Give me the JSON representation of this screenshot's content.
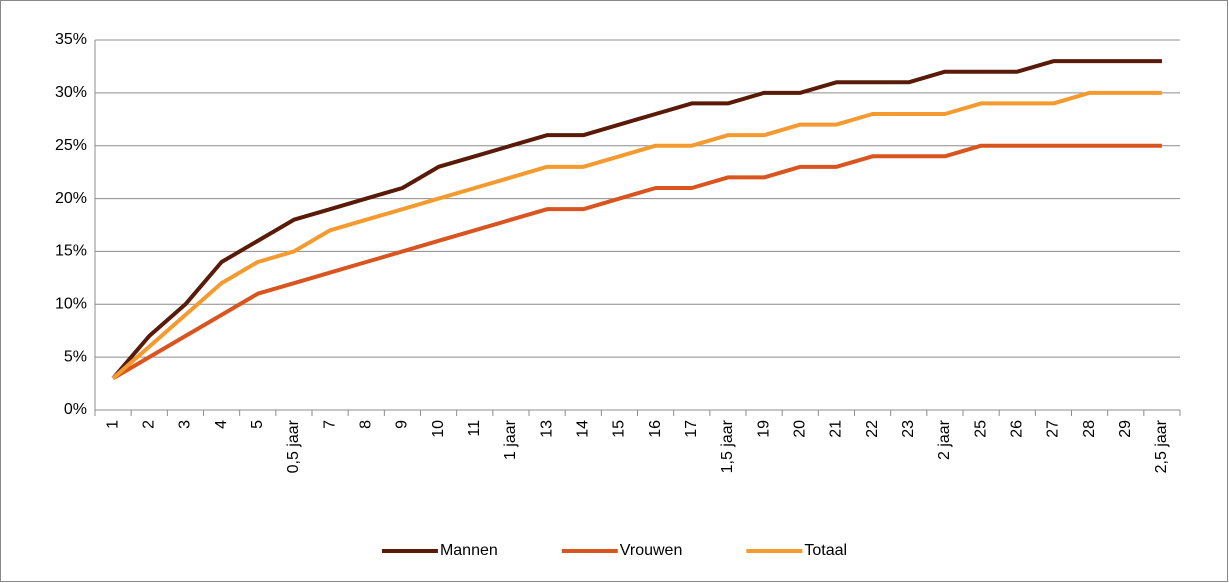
{
  "chart_data": {
    "type": "line",
    "categories": [
      "1",
      "2",
      "3",
      "4",
      "5",
      "0,5 jaar",
      "7",
      "8",
      "9",
      "10",
      "11",
      "1 jaar",
      "13",
      "14",
      "15",
      "16",
      "17",
      "1,5 jaar",
      "19",
      "20",
      "21",
      "22",
      "23",
      "2 jaar",
      "25",
      "26",
      "27",
      "28",
      "29",
      "2,5 jaar"
    ],
    "series": [
      {
        "name": "Mannen",
        "color": "#5a1a08",
        "values": [
          3,
          7,
          10,
          14,
          16,
          18,
          19,
          20,
          21,
          23,
          24,
          25,
          26,
          26,
          27,
          28,
          29,
          29,
          30,
          30,
          31,
          31,
          31,
          32,
          32,
          32,
          33,
          33,
          33,
          33
        ]
      },
      {
        "name": "Vrouwen",
        "color": "#d9541e",
        "values": [
          3,
          5,
          7,
          9,
          11,
          12,
          13,
          14,
          15,
          16,
          17,
          18,
          19,
          19,
          20,
          21,
          21,
          22,
          22,
          23,
          23,
          24,
          24,
          24,
          25,
          25,
          25,
          25,
          25,
          25
        ]
      },
      {
        "name": "Totaal",
        "color": "#f59a2e",
        "values": [
          3,
          6,
          9,
          12,
          14,
          15,
          17,
          18,
          19,
          20,
          21,
          22,
          23,
          23,
          24,
          25,
          25,
          26,
          26,
          27,
          27,
          28,
          28,
          28,
          29,
          29,
          29,
          30,
          30,
          30
        ]
      }
    ],
    "ylim": [
      0,
      35
    ],
    "yticks": [
      {
        "value": 0,
        "label": "0%"
      },
      {
        "value": 5,
        "label": "5%"
      },
      {
        "value": 10,
        "label": "10%"
      },
      {
        "value": 15,
        "label": "15%"
      },
      {
        "value": 20,
        "label": "20%"
      },
      {
        "value": 25,
        "label": "25%"
      },
      {
        "value": 30,
        "label": "30%"
      },
      {
        "value": 35,
        "label": "35%"
      }
    ],
    "grid": true,
    "legend": "bottom"
  }
}
